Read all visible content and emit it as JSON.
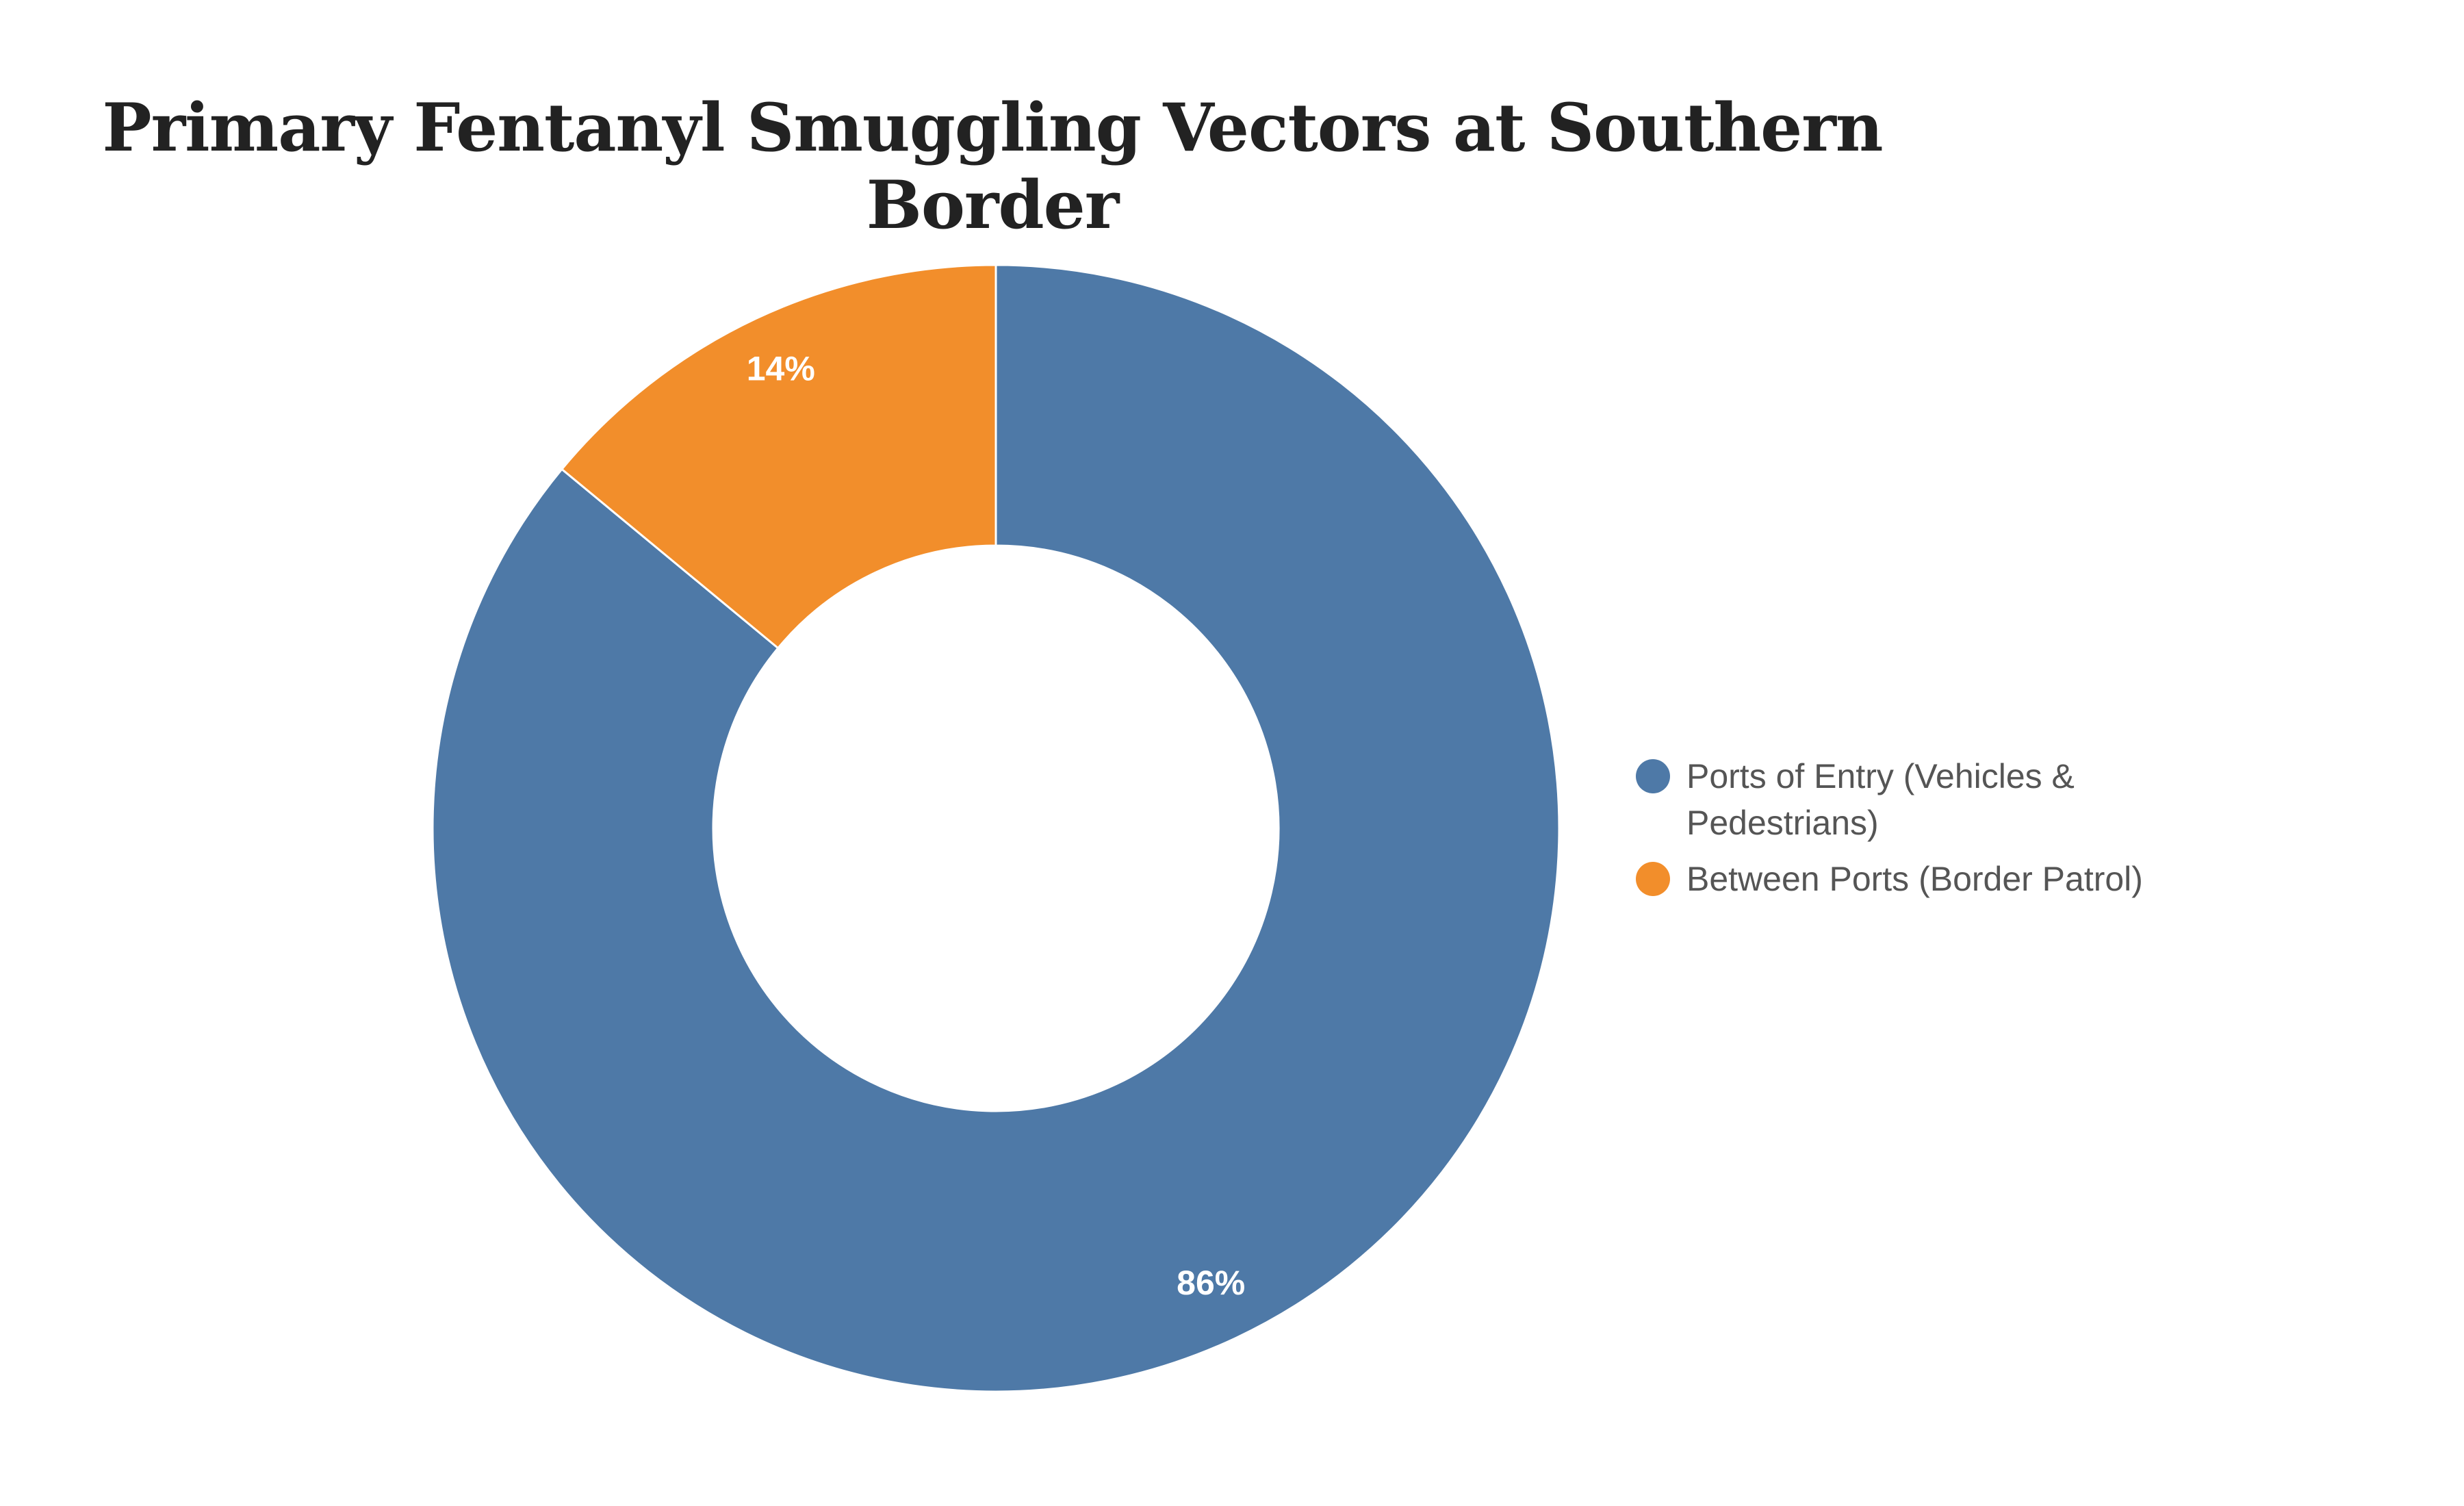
{
  "chart_data": {
    "type": "pie",
    "variant": "donut",
    "title": "Primary Fentanyl Smuggling Vectors at Southern Border",
    "slices": [
      {
        "label": "Ports of Entry (Vehicles & Pedestrians)",
        "value": 86,
        "display": "86%",
        "color": "#4e79a7"
      },
      {
        "label": "Between Ports (Border Patrol)",
        "value": 14,
        "display": "14%",
        "color": "#f28e2b"
      }
    ],
    "legend_position": "right"
  }
}
